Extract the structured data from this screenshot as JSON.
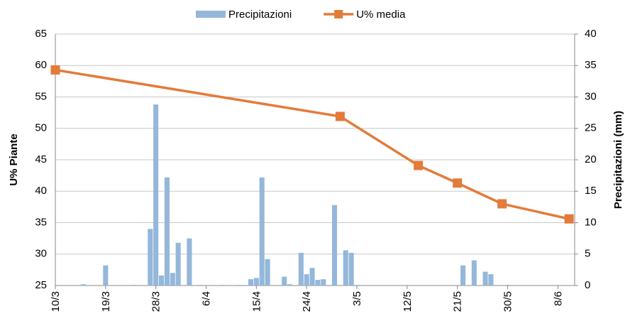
{
  "chart_data": {
    "type": "bar-line",
    "y_label": "U% Piante",
    "y2_label": "Precipitazioni (mm)",
    "xlim": [
      "10/3",
      "11/6"
    ],
    "xticks": [
      "10/3",
      "19/3",
      "28/3",
      "6/4",
      "15/4",
      "24/4",
      "3/5",
      "12/5",
      "21/5",
      "30/5",
      "8/6"
    ],
    "ylim": [
      25,
      65
    ],
    "yticks": [
      25,
      30,
      35,
      40,
      45,
      50,
      55,
      60,
      65
    ],
    "y2lim": [
      0,
      40
    ],
    "y2ticks": [
      0,
      5,
      10,
      15,
      20,
      25,
      30,
      35,
      40
    ],
    "grid": true,
    "legend": "top",
    "series": [
      {
        "name": "Precipitazioni",
        "type": "bar",
        "axis": "y2",
        "color": "#94b7da",
        "x": [
          "15/3",
          "19/3",
          "24/3",
          "27/3",
          "28/3",
          "29/3",
          "30/3",
          "31/3",
          "1/4",
          "3/4",
          "5/4",
          "9/4",
          "12/4",
          "14/4",
          "15/4",
          "16/4",
          "17/4",
          "20/4",
          "21/4",
          "23/4",
          "24/4",
          "25/4",
          "26/4",
          "27/4",
          "29/4",
          "1/5",
          "2/5",
          "3/5",
          "22/5",
          "24/5",
          "26/5",
          "27/5",
          "30/5"
        ],
        "values": [
          0.2,
          3.2,
          0.1,
          9.0,
          28.8,
          1.6,
          17.2,
          2.0,
          6.8,
          7.5,
          0.1,
          0.1,
          0.1,
          1.0,
          1.2,
          17.2,
          4.2,
          1.4,
          0.2,
          5.2,
          1.8,
          2.8,
          0.9,
          1.0,
          12.8,
          5.6,
          5.2,
          0.1,
          3.2,
          4.0,
          2.2,
          1.8,
          0.1
        ]
      },
      {
        "name": "U% media",
        "type": "line",
        "axis": "y",
        "color": "#e37b3a",
        "x": [
          "10/3",
          "30/4",
          "14/5",
          "21/5",
          "29/5",
          "10/6"
        ],
        "values": [
          59.3,
          51.9,
          44.1,
          41.3,
          38.0,
          35.6
        ]
      }
    ]
  }
}
